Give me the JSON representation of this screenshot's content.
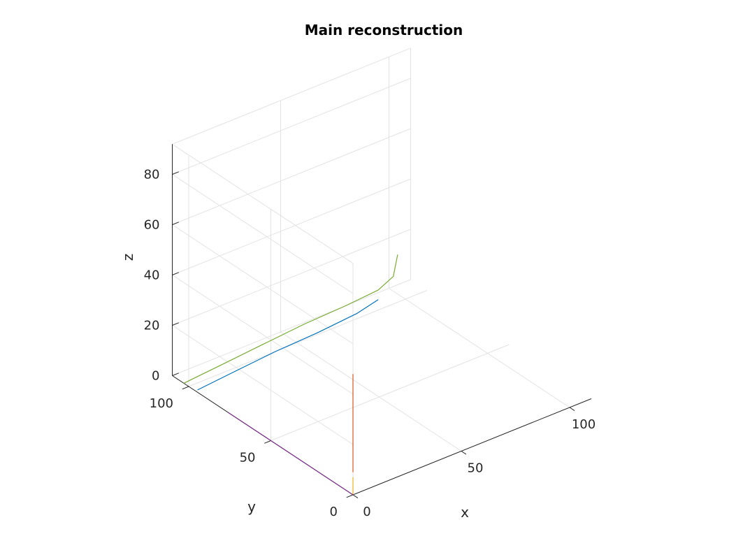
{
  "chart_data": {
    "type": "line3d",
    "title": "Main reconstruction",
    "xlabel": "x",
    "ylabel": "y",
    "zlabel": "z",
    "xlim": [
      0,
      110
    ],
    "ylim": [
      0,
      110
    ],
    "zlim": [
      0,
      92
    ],
    "xticks": [
      0,
      50,
      100
    ],
    "yticks": [
      0,
      50,
      100
    ],
    "zticks": [
      0,
      20,
      40,
      60,
      80
    ],
    "grid": true,
    "view": "3d-oblique",
    "series": [
      {
        "color": "#0072BD",
        "points": [
          [
            1,
            96,
            0
          ],
          [
            20,
            98,
            0
          ],
          [
            40,
            100,
            0
          ],
          [
            60,
            101,
            0
          ],
          [
            80,
            103,
            0
          ],
          [
            92,
            106,
            0
          ]
        ]
      },
      {
        "color": "#D95319",
        "points": [
          [
            0,
            0,
            9
          ],
          [
            0,
            0,
            20
          ],
          [
            0,
            0,
            30
          ],
          [
            0,
            0,
            40
          ],
          [
            0,
            0,
            48
          ]
        ]
      },
      {
        "color": "#EDB120",
        "points": [
          [
            0,
            0,
            0
          ],
          [
            0,
            0,
            2
          ],
          [
            0,
            0,
            4
          ],
          [
            0,
            0,
            6
          ],
          [
            0,
            0,
            7
          ]
        ]
      },
      {
        "color": "#7E2F8E",
        "points": [
          [
            0,
            0,
            0
          ],
          [
            0,
            16,
            0
          ],
          [
            0,
            30,
            0
          ],
          [
            0,
            44,
            0
          ],
          [
            0,
            58,
            0
          ],
          [
            0,
            70,
            0
          ],
          [
            0,
            76,
            0
          ]
        ]
      },
      {
        "color": "#77AC30",
        "points": [
          [
            0,
            103,
            0
          ],
          [
            20,
            105,
            0
          ],
          [
            40,
            107,
            0
          ],
          [
            60,
            109,
            0
          ],
          [
            80,
            110,
            0
          ],
          [
            95,
            110,
            1
          ],
          [
            102,
            110,
            4
          ],
          [
            104,
            110,
            12
          ]
        ]
      }
    ]
  }
}
